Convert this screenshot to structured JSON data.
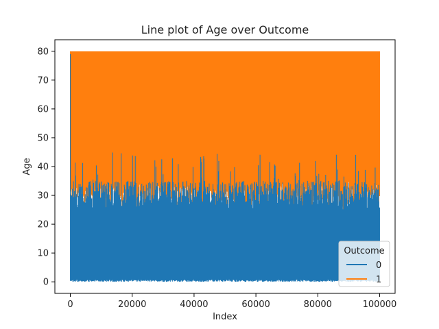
{
  "chart_data": {
    "type": "line",
    "title": "Line plot of Age over Outcome",
    "xlabel": "Index",
    "ylabel": "Age",
    "xlim": [
      -5000,
      105000
    ],
    "ylim": [
      -4,
      84
    ],
    "x_ticks": [
      0,
      20000,
      40000,
      60000,
      80000,
      100000
    ],
    "x_tick_labels": [
      "0",
      "20000",
      "40000",
      "60000",
      "80000",
      "100000"
    ],
    "y_ticks": [
      0,
      10,
      20,
      30,
      40,
      50,
      60,
      70,
      80
    ],
    "y_tick_labels": [
      "0",
      "10",
      "20",
      "30",
      "40",
      "50",
      "60",
      "70",
      "80"
    ],
    "grid": false,
    "legend": {
      "title": "Outcome",
      "placement": "lower-right"
    },
    "x_range": [
      0,
      100000
    ],
    "series": [
      {
        "name": "0",
        "color": "#1f77b4",
        "min_y": 0,
        "max_y": 80,
        "typical_upper_y": [
          25,
          35
        ],
        "peak_upper_y": 45
      },
      {
        "name": "1",
        "color": "#ff7f0e",
        "min_y": 3,
        "max_y": 80,
        "typical_lower_y": [
          25,
          35
        ]
      }
    ]
  }
}
